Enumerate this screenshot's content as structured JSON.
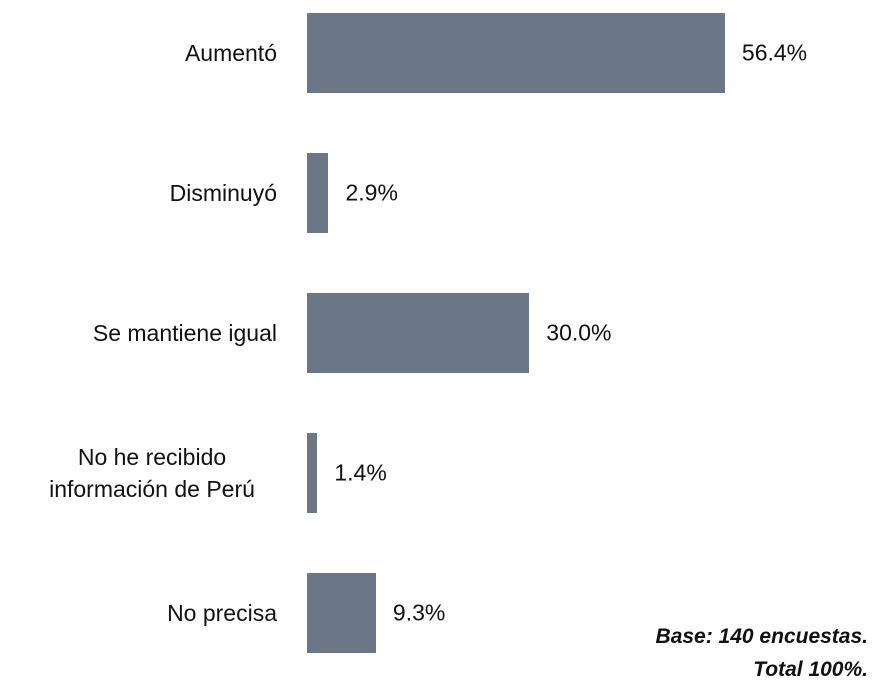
{
  "chart_data": {
    "type": "barh",
    "categories": [
      "Aumentó",
      "Disminuyó",
      "Se mantiene igual",
      "No he recibido información de Perú",
      "No precisa"
    ],
    "values": [
      56.4,
      2.9,
      30.0,
      1.4,
      9.3
    ],
    "value_labels": [
      "56.4%",
      "2.9%",
      "30.0%",
      "1.4%",
      "9.3%"
    ],
    "color": "#6b7787",
    "notes": [
      "Base: 140 encuestas.",
      "Total 100%."
    ]
  }
}
